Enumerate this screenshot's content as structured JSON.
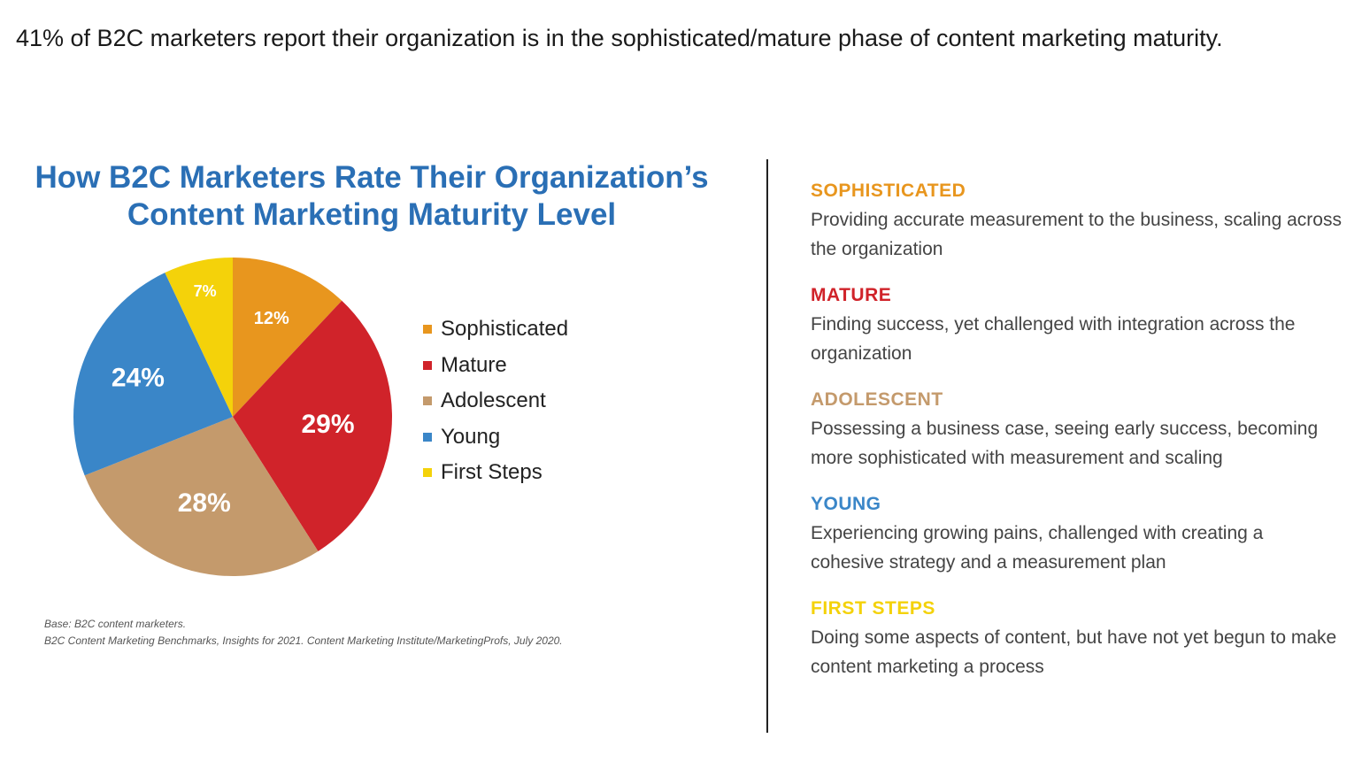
{
  "headline": "41% of B2C marketers report their organization is in the sophisticated/mature phase of content marketing maturity.",
  "chart_data": {
    "type": "pie",
    "title": [
      "How B2C Marketers Rate Their Organization’s",
      "Content Marketing Maturity Level"
    ],
    "categories": [
      "Sophisticated",
      "Mature",
      "Adolescent",
      "Young",
      "First Steps"
    ],
    "values": [
      12,
      29,
      28,
      24,
      7
    ],
    "labels": [
      "12%",
      "29%",
      "28%",
      "24%",
      "7%"
    ],
    "colors": [
      "#E8961E",
      "#D0232A",
      "#C49A6C",
      "#3A86C8",
      "#F4D20A"
    ],
    "legend_position": "right"
  },
  "footnote": {
    "line1": "Base: B2C content marketers.",
    "line2": "B2C Content Marketing Benchmarks, Insights for 2021. Content Marketing Institute/MarketingProfs, July 2020."
  },
  "definitions": [
    {
      "title": "SOPHISTICATED",
      "color": "#E8961E",
      "text": "Providing accurate measurement to the business, scaling across the organization"
    },
    {
      "title": "MATURE",
      "color": "#D0232A",
      "text": "Finding success, yet challenged with integration across the organization"
    },
    {
      "title": "ADOLESCENT",
      "color": "#C49A6C",
      "text": "Possessing a business case, seeing early success, becoming more sophisticated with measurement and scaling"
    },
    {
      "title": "YOUNG",
      "color": "#3A86C8",
      "text": "Experiencing growing pains, challenged with creating a cohesive strategy and a measurement plan"
    },
    {
      "title": "FIRST STEPS",
      "color": "#F4D20A",
      "text": "Doing some aspects of content, but have not yet begun to make content marketing a process"
    }
  ]
}
